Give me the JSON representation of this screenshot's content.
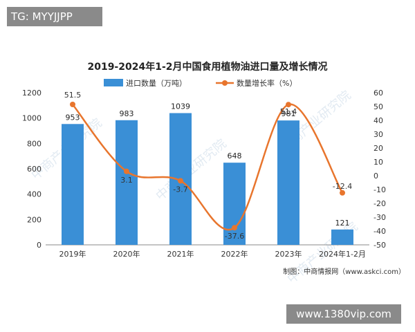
{
  "overlay": {
    "tg_text": "TG: MYYJJPP",
    "site_text": "www.1380vip.com"
  },
  "chart_data": {
    "type": "bar",
    "title": "2019-2024年1-2月中国食用植物油进口量及增长情况",
    "categories": [
      "2019年",
      "2020年",
      "2021年",
      "2022年",
      "2023年",
      "2024年1-2月"
    ],
    "series": [
      {
        "name": "进口数量（万吨）",
        "type": "bar",
        "axis": "left",
        "values": [
          953,
          983,
          1039,
          648,
          981,
          121
        ],
        "labels": [
          "953",
          "983",
          "1039",
          "648",
          "981",
          "121"
        ],
        "color": "#3a8fd6"
      },
      {
        "name": "数量增长率（%）",
        "type": "line",
        "axis": "right",
        "values": [
          51.5,
          3.1,
          -3.7,
          -37.6,
          51.4,
          -12.4
        ],
        "labels": [
          "51.5",
          "3.1",
          "-3.7",
          "-37.6",
          "51.4",
          "-12.4"
        ],
        "color": "#e8752d"
      }
    ],
    "y_left": {
      "min": 0,
      "max": 1200,
      "ticks": [
        0,
        200,
        400,
        600,
        800,
        1000,
        1200
      ]
    },
    "y_right": {
      "min": -50,
      "max": 60,
      "ticks": [
        -50,
        -40,
        -30,
        -20,
        -10,
        0,
        10,
        20,
        30,
        40,
        50,
        60
      ]
    },
    "legend_position": "top-center",
    "grid": false,
    "source": "制图：中商情报网（www.askci.com）",
    "watermark": "中商产业研究院"
  }
}
